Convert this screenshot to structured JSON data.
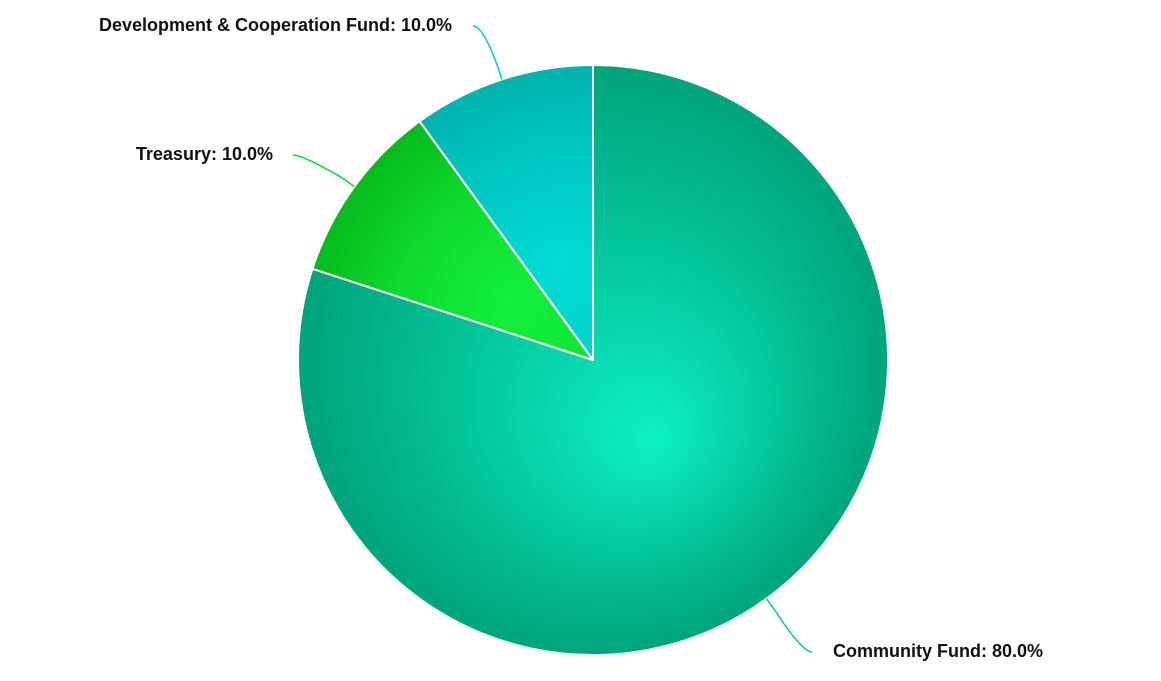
{
  "chart_data": {
    "type": "pie",
    "start_angle_deg": 0,
    "direction": "clockwise",
    "slices": [
      {
        "name": "Community Fund",
        "value": 80.0,
        "label": "Community Fund: 80.0%",
        "color": "#04c39a",
        "highlight": "#0cf0c4",
        "shade": "#00a47b"
      },
      {
        "name": "Treasury",
        "value": 10.0,
        "label": "Treasury: 10.0%",
        "color": "#0ed92e",
        "highlight": "#13ef3c",
        "shade": "#08bb1e"
      },
      {
        "name": "Development & Cooperation Fund",
        "value": 10.0,
        "label": "Development & Cooperation Fund: 10.0%",
        "color": "#00c7c2",
        "highlight": "#00dcd4",
        "shade": "#00b3ae"
      }
    ]
  }
}
